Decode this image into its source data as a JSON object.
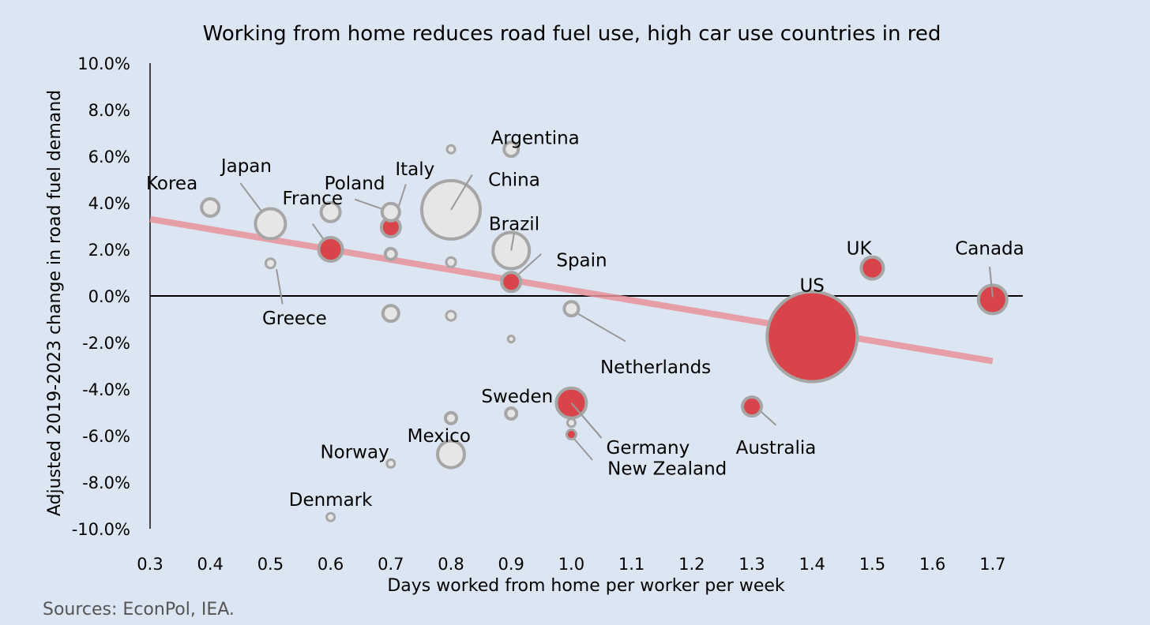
{
  "chart_data": {
    "type": "scatter",
    "title": "Working from home reduces road fuel use, high car use countries in red",
    "xlabel": "Days worked from home per worker per week",
    "ylabel": "Adjusted 2019-2023 change in road fuel demand",
    "xlim": [
      0.3,
      1.75
    ],
    "ylim": [
      -10.0,
      10.0
    ],
    "x_ticks": [
      "0.3",
      "0.4",
      "0.5",
      "0.6",
      "0.7",
      "0.8",
      "0.9",
      "1.0",
      "1.1",
      "1.2",
      "1.3",
      "1.4",
      "1.5",
      "1.6",
      "1.7"
    ],
    "y_ticks": [
      "10.0%",
      "8.0%",
      "6.0%",
      "4.0%",
      "2.0%",
      "0.0%",
      "-2.0%",
      "-4.0%",
      "-6.0%",
      "-8.0%",
      "-10.0%"
    ],
    "source": "Sources: EconPol, IEA.",
    "colors": {
      "high_car_use": "#d9434a",
      "other": "#e6e6e6",
      "outline": "#a6a6a6",
      "trend": "#e8939a"
    },
    "trendline": {
      "x0": 0.3,
      "y0": 3.3,
      "x1": 1.7,
      "y1": -2.8
    },
    "points": [
      {
        "label": "Korea",
        "x": 0.4,
        "y": 3.8,
        "r": 11,
        "high": false
      },
      {
        "label": "Japan",
        "x": 0.5,
        "y": 3.1,
        "r": 19,
        "high": false
      },
      {
        "label": "Greece",
        "x": 0.5,
        "y": 1.4,
        "r": 6,
        "high": false
      },
      {
        "label": "",
        "x": 0.6,
        "y": 3.6,
        "r": 12,
        "high": false
      },
      {
        "label": "France",
        "x": 0.6,
        "y": 2.0,
        "r": 15,
        "high": true
      },
      {
        "label": "Poland",
        "x": 0.7,
        "y": 3.6,
        "r": 11,
        "high": false
      },
      {
        "label": "Italy",
        "x": 0.7,
        "y": 2.95,
        "r": 12,
        "high": true
      },
      {
        "label": "",
        "x": 0.7,
        "y": 1.8,
        "r": 7,
        "high": false
      },
      {
        "label": "",
        "x": 0.7,
        "y": -0.75,
        "r": 10,
        "high": false
      },
      {
        "label": "Norway",
        "x": 0.7,
        "y": -7.2,
        "r": 5,
        "high": false
      },
      {
        "label": "",
        "x": 0.8,
        "y": 6.3,
        "r": 5,
        "high": false
      },
      {
        "label": "China",
        "x": 0.8,
        "y": 3.7,
        "r": 37,
        "high": false
      },
      {
        "label": "",
        "x": 0.8,
        "y": 1.45,
        "r": 6,
        "high": false
      },
      {
        "label": "",
        "x": 0.8,
        "y": -0.85,
        "r": 6,
        "high": false
      },
      {
        "label": "",
        "x": 0.8,
        "y": -5.25,
        "r": 7,
        "high": false
      },
      {
        "label": "Mexico",
        "x": 0.8,
        "y": -6.8,
        "r": 17,
        "high": false
      },
      {
        "label": "Argentina",
        "x": 0.9,
        "y": 6.3,
        "r": 9,
        "high": false
      },
      {
        "label": "Brazil",
        "x": 0.9,
        "y": 1.95,
        "r": 23,
        "high": false
      },
      {
        "label": "Spain",
        "x": 0.9,
        "y": 0.6,
        "r": 12,
        "high": true
      },
      {
        "label": "",
        "x": 0.9,
        "y": -1.85,
        "r": 4,
        "high": false
      },
      {
        "label": "",
        "x": 0.9,
        "y": -5.05,
        "r": 7,
        "high": false
      },
      {
        "label": "Netherlands",
        "x": 1.0,
        "y": -0.55,
        "r": 9,
        "high": false
      },
      {
        "label": "Sweden",
        "x": 1.0,
        "y": -4.6,
        "r": 19,
        "high": true
      },
      {
        "label": "Germany",
        "x": 1.0,
        "y": -5.45,
        "r": 5,
        "high": false
      },
      {
        "label": "New Zealand",
        "x": 1.0,
        "y": -5.95,
        "r": 6,
        "high": true
      },
      {
        "label": "Australia",
        "x": 1.3,
        "y": -4.75,
        "r": 12,
        "high": true
      },
      {
        "label": "US",
        "x": 1.4,
        "y": -1.75,
        "r": 57,
        "high": true
      },
      {
        "label": "UK",
        "x": 1.5,
        "y": 1.2,
        "r": 14,
        "high": true
      },
      {
        "label": "Canada",
        "x": 1.7,
        "y": -0.15,
        "r": 18,
        "high": true
      },
      {
        "label": "Denmark",
        "x": 0.6,
        "y": -9.5,
        "r": 5,
        "high": false
      }
    ],
    "labels": [
      {
        "text": "Korea",
        "lx": 0.4,
        "ly": 4.85,
        "anchor": "end",
        "dx": -16
      },
      {
        "text": "Japan",
        "lx": 0.46,
        "ly": 5.6,
        "anchor": "middle",
        "dx": 0,
        "line": [
          0.45,
          4.85,
          0.495,
          3.3
        ]
      },
      {
        "text": "France",
        "lx": 0.57,
        "ly": 4.2,
        "anchor": "middle",
        "dx": 0,
        "line": [
          0.57,
          3.1,
          0.6,
          2.0
        ]
      },
      {
        "text": "Poland",
        "lx": 0.64,
        "ly": 4.85,
        "anchor": "middle",
        "dx": 0,
        "line": [
          0.64,
          4.15,
          0.695,
          3.65
        ]
      },
      {
        "text": "Italy",
        "lx": 0.74,
        "ly": 5.45,
        "anchor": "middle",
        "dx": 0,
        "line": [
          0.725,
          4.8,
          0.705,
          3.2
        ]
      },
      {
        "text": "Argentina",
        "lx": 0.94,
        "ly": 6.8,
        "anchor": "middle",
        "dx": 0
      },
      {
        "text": "China",
        "lx": 0.905,
        "ly": 5.0,
        "anchor": "middle",
        "dx": 0,
        "line": [
          0.835,
          5.2,
          0.8,
          3.7
        ]
      },
      {
        "text": "Brazil",
        "lx": 0.905,
        "ly": 3.1,
        "anchor": "middle",
        "dx": 0,
        "line": [
          0.905,
          2.7,
          0.9,
          1.95
        ]
      },
      {
        "text": "Spain",
        "lx": 0.975,
        "ly": 1.55,
        "anchor": "start",
        "dx": 0,
        "line": [
          0.95,
          1.8,
          0.9,
          0.65
        ]
      },
      {
        "text": "Greece",
        "lx": 0.54,
        "ly": -0.95,
        "anchor": "middle",
        "dx": 0,
        "line": [
          0.51,
          1.15,
          0.52,
          -0.35
        ]
      },
      {
        "text": "Netherlands",
        "lx": 1.14,
        "ly": -3.05,
        "anchor": "middle",
        "dx": 0,
        "line": [
          1.0,
          -0.6,
          1.09,
          -1.95
        ]
      },
      {
        "text": "Sweden",
        "lx": 0.91,
        "ly": -4.3,
        "anchor": "middle",
        "dx": 0
      },
      {
        "text": "Germany",
        "lx": 1.05,
        "ly": -6.5,
        "anchor": "start",
        "dx": 6,
        "line": [
          1.0,
          -4.6,
          1.05,
          -6.1
        ]
      },
      {
        "text": "New Zealand",
        "lx": 1.06,
        "ly": -7.4,
        "anchor": "start",
        "dx": 0,
        "line": [
          1.0,
          -6.0,
          1.035,
          -7.05
        ]
      },
      {
        "text": "Australia",
        "lx": 1.34,
        "ly": -6.5,
        "anchor": "middle",
        "dx": 0,
        "line": [
          1.31,
          -4.85,
          1.34,
          -5.55
        ]
      },
      {
        "text": "Norway",
        "lx": 0.64,
        "ly": -6.7,
        "anchor": "middle",
        "dx": 0
      },
      {
        "text": "Mexico",
        "lx": 0.78,
        "ly": -6.0,
        "anchor": "middle",
        "dx": 0
      },
      {
        "text": "Denmark",
        "lx": 0.6,
        "ly": -8.75,
        "anchor": "middle",
        "dx": 0
      },
      {
        "text": "US",
        "lx": 1.4,
        "ly": 0.45,
        "anchor": "middle",
        "dx": 0
      },
      {
        "text": "UK",
        "lx": 1.478,
        "ly": 2.05,
        "anchor": "middle",
        "dx": 0
      },
      {
        "text": "Canada",
        "lx": 1.695,
        "ly": 2.05,
        "anchor": "middle",
        "dx": 0,
        "line": [
          1.695,
          1.25,
          1.7,
          -0.05
        ]
      }
    ]
  }
}
